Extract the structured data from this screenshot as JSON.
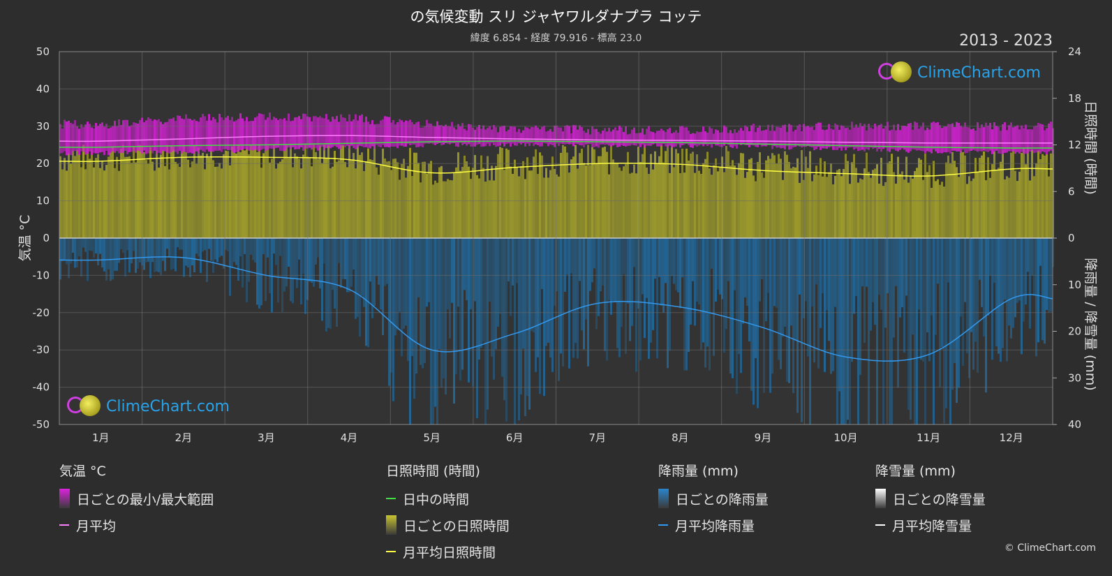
{
  "title": "の気候変動 スリ ジャヤワルダナプラ コッテ",
  "subtitle": "緯度 6.854 - 経度 79.916 - 標高 23.0",
  "years": "2013 - 2023",
  "logo_text": "ClimeChart.com",
  "copyright": "© ClimeChart.com",
  "colors": {
    "background": "#2d2d2d",
    "temp_range": "#cc22cc",
    "temp_avg": "#ff80ff",
    "daylight": "#44dd44",
    "sunshine_fill": "#9c9a2c",
    "sunshine_avg": "#ffff44",
    "rain_fill": "#1f6fa8",
    "rain_avg": "#3399ee",
    "snow": "#ffffff"
  },
  "chart_data": {
    "type": "area",
    "months": [
      "1月",
      "2月",
      "3月",
      "4月",
      "5月",
      "6月",
      "7月",
      "8月",
      "9月",
      "10月",
      "11月",
      "12月"
    ],
    "y_left": {
      "label": "気温 °C",
      "ticks": [
        50,
        40,
        30,
        20,
        10,
        0,
        -10,
        -20,
        -30,
        -40,
        -50
      ],
      "range": [
        -50,
        50
      ]
    },
    "y_right_top": {
      "label": "日照時間 (時間)",
      "ticks": [
        24,
        18,
        12,
        6,
        0
      ],
      "range": [
        0,
        24
      ]
    },
    "y_right_bottom": {
      "label": "降雨量 / 降雪量 (mm)",
      "ticks": [
        0,
        10,
        20,
        30,
        40
      ],
      "range": [
        0,
        40
      ]
    },
    "grid": true,
    "series": [
      {
        "name": "月平均",
        "unit": "°C",
        "values": [
          26.0,
          26.6,
          27.3,
          27.5,
          27.0,
          26.6,
          26.3,
          26.2,
          26.0,
          25.7,
          25.5,
          25.5
        ]
      },
      {
        "name": "日ごとの最小/最大範囲 (min)",
        "unit": "°C",
        "values": [
          22.8,
          23.0,
          23.6,
          24.3,
          25.0,
          25.0,
          24.8,
          24.8,
          24.5,
          23.9,
          23.3,
          23.0
        ]
      },
      {
        "name": "日ごとの最小/最大範囲 (max)",
        "unit": "°C",
        "values": [
          30.5,
          32.0,
          32.5,
          32.2,
          30.5,
          29.3,
          29.0,
          29.0,
          29.5,
          30.0,
          30.0,
          30.0
        ]
      },
      {
        "name": "日中の時間",
        "unit": "時間",
        "values": [
          11.7,
          11.9,
          12.0,
          12.2,
          12.4,
          12.5,
          12.4,
          12.3,
          12.1,
          11.9,
          11.7,
          11.6
        ]
      },
      {
        "name": "月平均日照時間",
        "unit": "時間",
        "values": [
          9.9,
          10.4,
          10.4,
          10.1,
          8.4,
          9.1,
          9.6,
          9.5,
          8.7,
          8.3,
          8.0,
          8.9
        ]
      },
      {
        "name": "月平均降雨量",
        "unit": "mm",
        "values": [
          4.7,
          4.2,
          8.0,
          11.0,
          24.0,
          20.5,
          14.0,
          14.8,
          19.2,
          25.5,
          25.0,
          13.0
        ]
      }
    ],
    "legend": [
      {
        "heading": "気温 °C",
        "items": [
          {
            "label": "日ごとの最小/最大範囲",
            "kind": "box",
            "color": "#dd22dd"
          },
          {
            "label": "月平均",
            "kind": "line",
            "color": "#ff80ff"
          }
        ]
      },
      {
        "heading": "日照時間 (時間)",
        "items": [
          {
            "label": "日中の時間",
            "kind": "line",
            "color": "#44dd44"
          },
          {
            "label": "日ごとの日照時間",
            "kind": "box",
            "color": "#c8c430"
          },
          {
            "label": "月平均日照時間",
            "kind": "line",
            "color": "#ffff44"
          }
        ]
      },
      {
        "heading": "降雨量 (mm)",
        "items": [
          {
            "label": "日ごとの降雨量",
            "kind": "box",
            "color": "#2a85cc"
          },
          {
            "label": "月平均降雨量",
            "kind": "line",
            "color": "#3399ee"
          }
        ]
      },
      {
        "heading": "降雪量 (mm)",
        "items": [
          {
            "label": "日ごとの降雪量",
            "kind": "box",
            "color": "#ffffff"
          },
          {
            "label": "月平均降雪量",
            "kind": "line",
            "color": "#ffffff"
          }
        ]
      }
    ]
  }
}
